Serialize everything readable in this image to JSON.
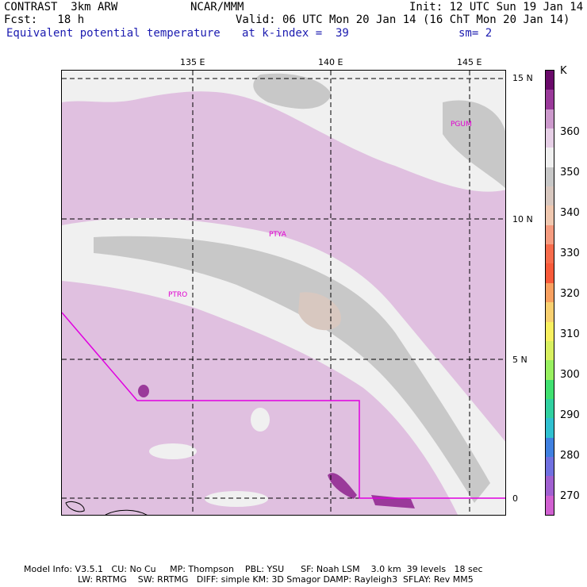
{
  "header": {
    "model": "CONTRAST  3km ARW",
    "center": "NCAR/MMM",
    "init": "Init: 12 UTC Sun 19 Jan 14",
    "fcst": "Fcst:   18 h",
    "valid": "Valid: 06 UTC Mon 20 Jan 14 (16 ChT Mon 20 Jan 14)",
    "field": "Equivalent potential temperature",
    "level": "at k-index =  39",
    "smooth": "sm= 2"
  },
  "map": {
    "lon_labels": [
      "135 E",
      "140 E",
      "145 E"
    ],
    "lat_labels": [
      "15 N",
      "10 N",
      "5 N",
      "0"
    ],
    "stations": [
      "PGUM",
      "PTYA",
      "PTRO"
    ]
  },
  "colorbar": {
    "unit": "K",
    "labels": [
      "360",
      "350",
      "340",
      "330",
      "320",
      "310",
      "300",
      "290",
      "280",
      "270"
    ],
    "colors": [
      "#6a0a6a",
      "#9a3a9a",
      "#cc99cc",
      "#e6cfe6",
      "#f0f0f0",
      "#c8c8c8",
      "#d8c8c0",
      "#f0c8b0",
      "#f59c80",
      "#f76c4c",
      "#f85a3a",
      "#f8a060",
      "#f8d070",
      "#f8f060",
      "#d8f060",
      "#98f060",
      "#40e070",
      "#30d0a0",
      "#30c0d0",
      "#4080e0",
      "#7070e0",
      "#a060d0",
      "#d060d0"
    ]
  },
  "footer": {
    "line1": "Model Info: V3.5.1   CU: No Cu     MP: Thompson    PBL: YSU      SF: Noah LSM    3.0 km  39 levels   18 sec",
    "line2": "LW: RRTMG    SW: RRTMG   DIFF: simple KM: 3D Smagor DAMP: Rayleigh3  SFLAY: Rev MM5"
  }
}
